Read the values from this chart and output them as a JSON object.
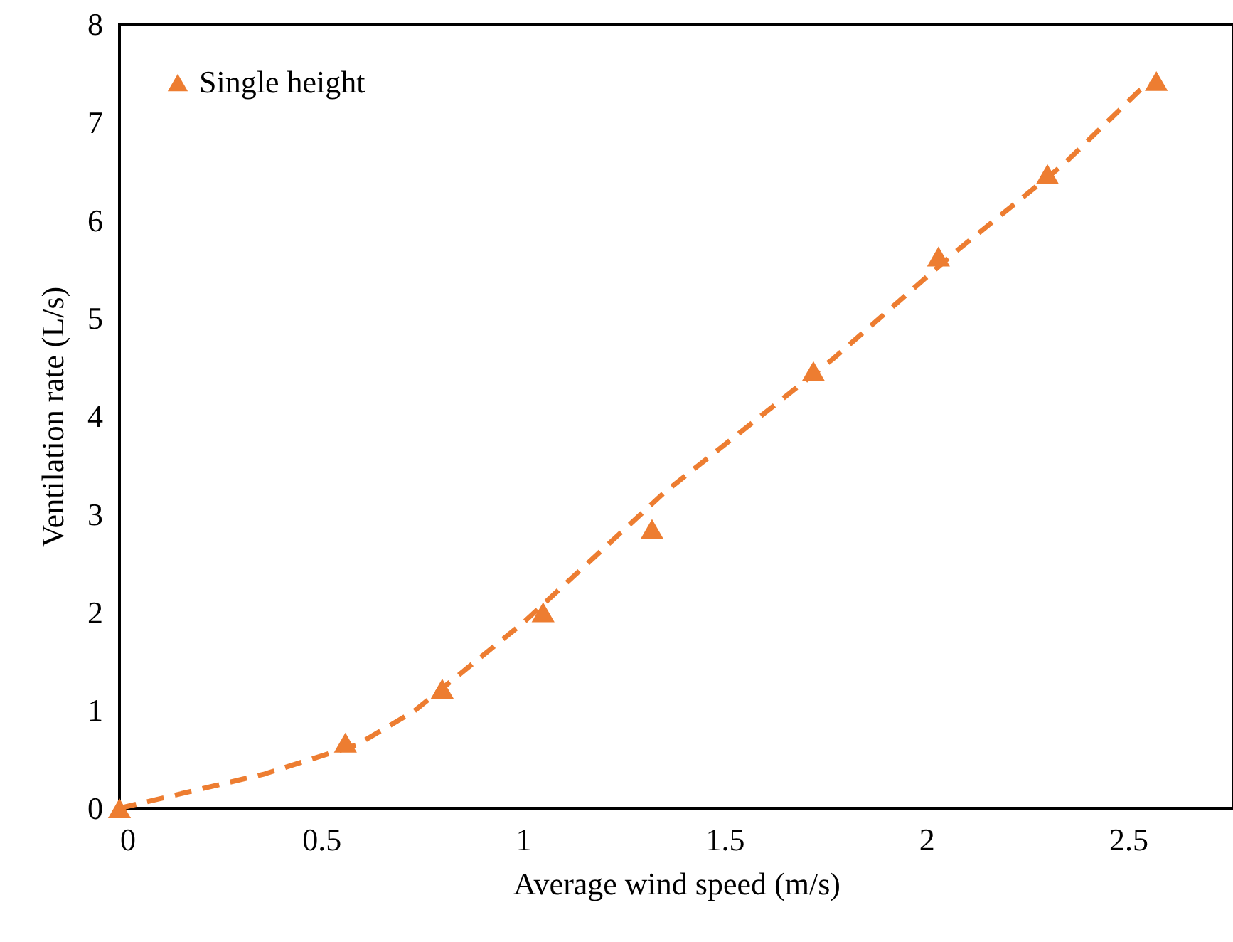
{
  "chart_data": {
    "type": "scatter",
    "xlabel": "Average wind speed (m/s)",
    "ylabel": "Ventilation rate (L/s)",
    "xlim": [
      0,
      2.76
    ],
    "xticks": [
      0,
      0.5,
      1,
      1.5,
      2,
      2.5
    ],
    "ylim": [
      0,
      8
    ],
    "yticks": [
      0,
      1,
      2,
      3,
      4,
      5,
      6,
      7,
      8
    ],
    "grid": false,
    "legend": "top left",
    "series": [
      {
        "name": "Single height",
        "type": "scatter",
        "marker": "triangle",
        "color": "#ed7d31",
        "x": [
          0,
          0.56,
          0.8,
          1.05,
          1.32,
          1.72,
          2.03,
          2.3,
          2.57
        ],
        "values": [
          0,
          0.67,
          1.22,
          2.0,
          2.85,
          4.46,
          5.63,
          6.47,
          7.42
        ]
      },
      {
        "type": "line",
        "line_style": "dashed",
        "marker": "none",
        "color": "#ed7d31",
        "x": [
          0,
          0.36,
          0.59,
          0.73,
          1.0,
          1.35,
          1.77,
          2.07,
          2.34,
          2.53,
          2.57
        ],
        "values": [
          0,
          0.35,
          0.65,
          0.99,
          1.89,
          3.22,
          4.59,
          5.67,
          6.57,
          7.33,
          7.42
        ]
      }
    ]
  }
}
